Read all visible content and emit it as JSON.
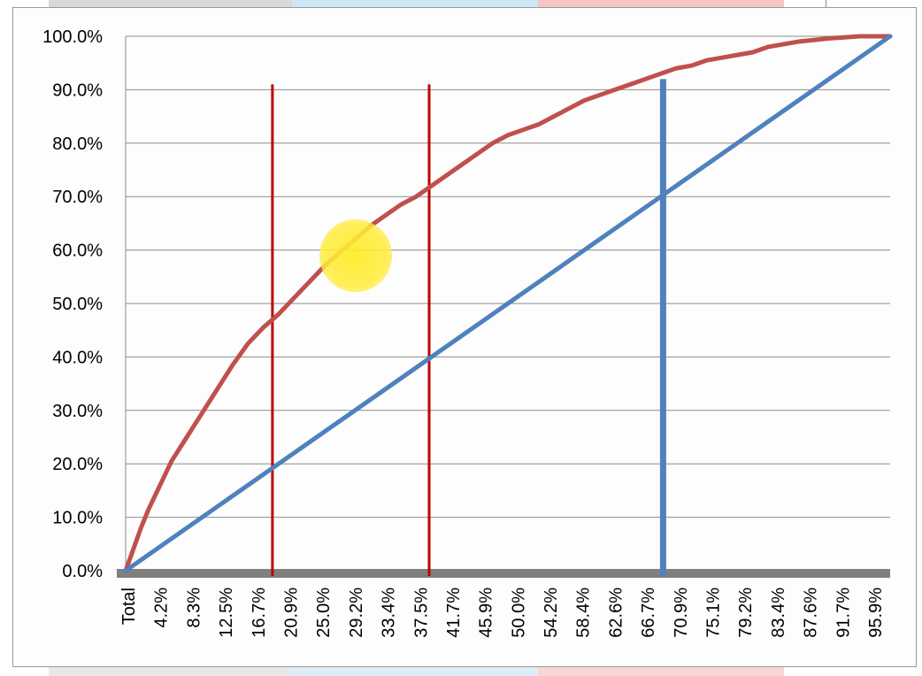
{
  "chart_data": {
    "type": "line",
    "title": "",
    "xlabel": "",
    "ylabel": "",
    "y_ticks": [
      "0.0%",
      "10.0%",
      "20.0%",
      "30.0%",
      "40.0%",
      "50.0%",
      "60.0%",
      "70.0%",
      "80.0%",
      "90.0%",
      "100.0%"
    ],
    "x_ticks": [
      "Total",
      "4.2%",
      "8.3%",
      "12.5%",
      "16.7%",
      "20.9%",
      "25.0%",
      "29.2%",
      "33.4%",
      "37.5%",
      "41.7%",
      "45.9%",
      "50.0%",
      "54.2%",
      "58.4%",
      "62.6%",
      "66.7%",
      "70.9%",
      "75.1%",
      "79.2%",
      "83.4%",
      "87.6%",
      "91.7%",
      "95.9%"
    ],
    "ylim": [
      0,
      100
    ],
    "xlim": [
      0,
      100
    ],
    "grid": true,
    "series": [
      {
        "color": "#c0504d",
        "x": [
          0,
          1,
          2,
          3,
          4,
          5,
          6,
          8,
          10,
          12,
          14,
          16,
          18,
          20,
          22,
          24,
          26,
          28,
          30,
          32,
          34,
          36,
          38,
          40,
          42,
          44,
          46,
          48,
          50,
          52,
          54,
          56,
          58,
          60,
          62,
          64,
          66,
          68,
          70,
          72,
          74,
          76,
          78,
          80,
          82,
          84,
          86,
          88,
          90,
          92,
          94,
          96,
          98,
          100
        ],
        "y": [
          0,
          4,
          8,
          11.5,
          14.5,
          17.5,
          20.5,
          25,
          29.5,
          34,
          38.5,
          42.5,
          45.5,
          48,
          51,
          54,
          57,
          59.5,
          62,
          64.5,
          66.5,
          68.5,
          70,
          72,
          74,
          76,
          78,
          80,
          81.5,
          82.5,
          83.5,
          85,
          86.5,
          88,
          89,
          90,
          91,
          92,
          93,
          94,
          94.5,
          95.5,
          96,
          96.5,
          97,
          98,
          98.5,
          99,
          99.3,
          99.6,
          99.8,
          100,
          100,
          100
        ]
      },
      {
        "color": "#4f81bd",
        "x": [
          0,
          100
        ],
        "y": [
          0,
          100
        ]
      }
    ],
    "reference_lines": [
      {
        "color": "#c00000",
        "x": 19.2,
        "y_top": 91
      },
      {
        "color": "#c00000",
        "x": 39.7,
        "y_top": 91
      },
      {
        "color": "#4f81bd",
        "x": 70.3,
        "y_top": 92
      }
    ]
  }
}
